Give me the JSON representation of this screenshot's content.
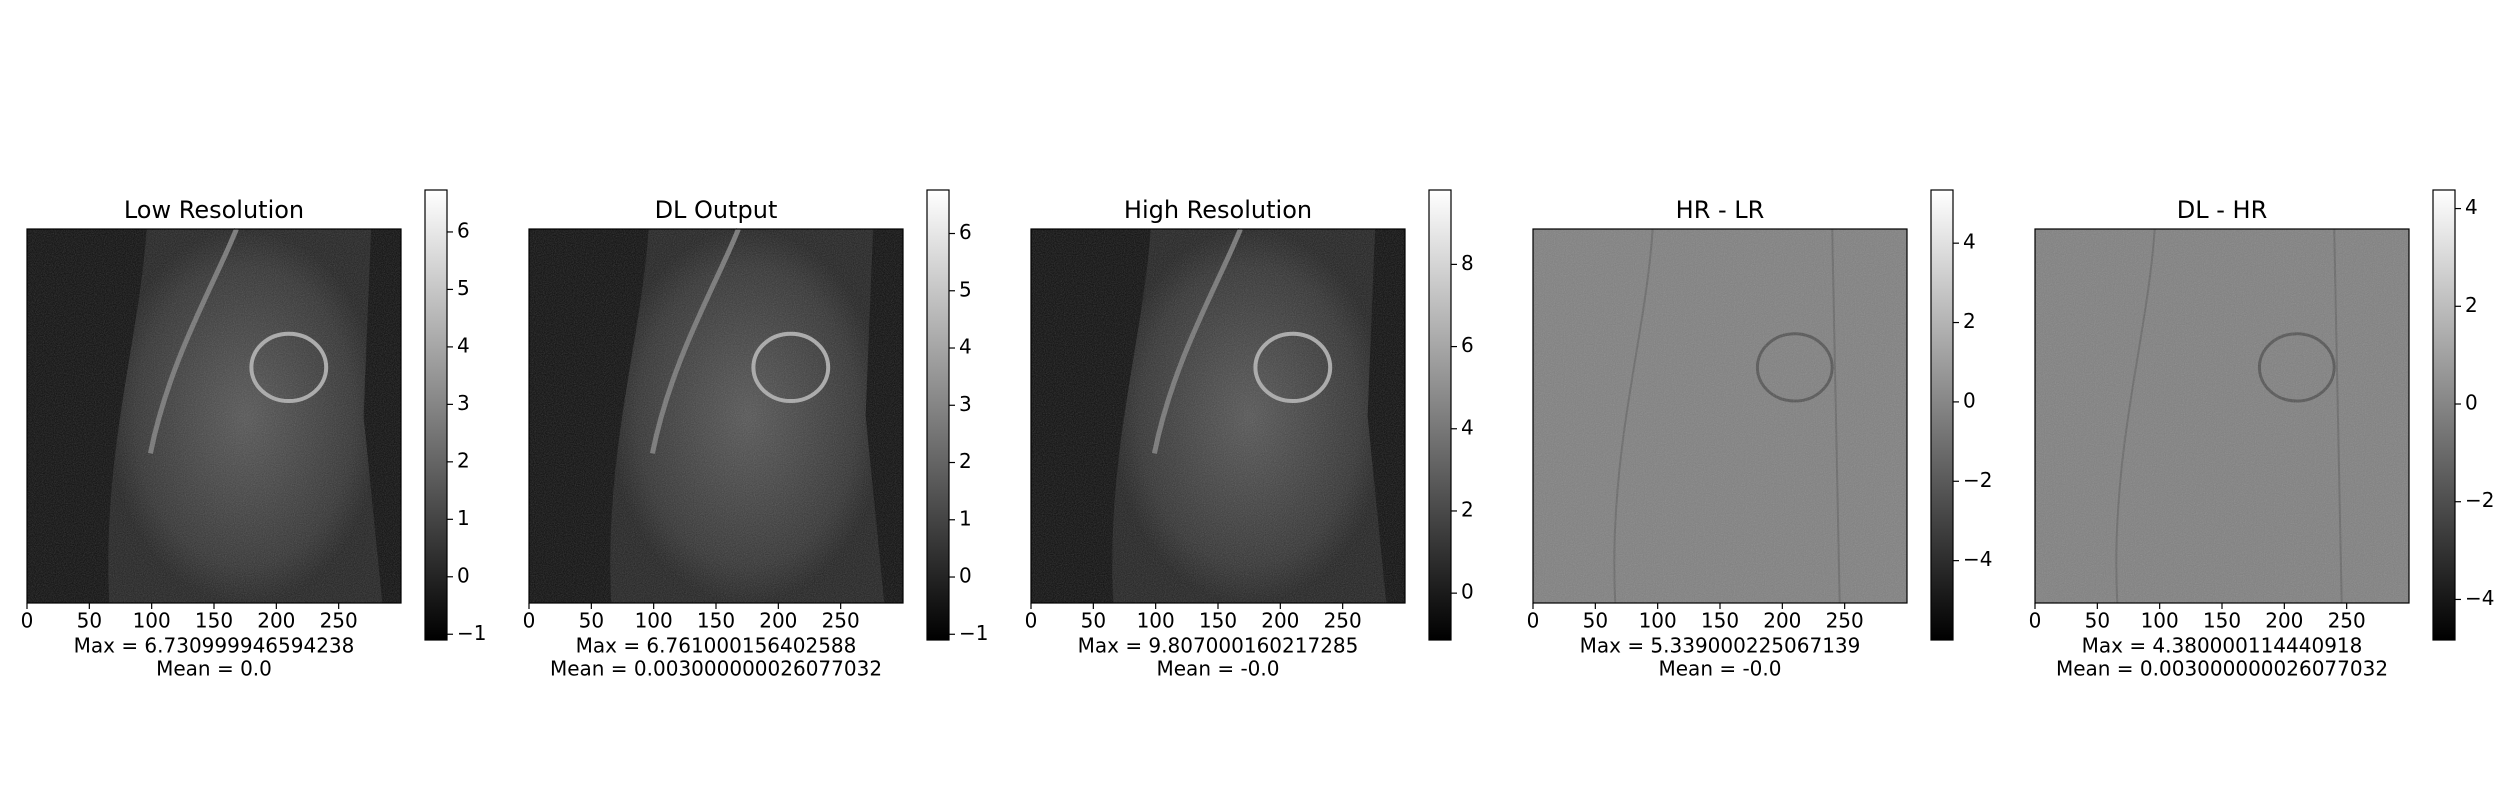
{
  "chart_data": [
    {
      "type": "image",
      "title": "Low Resolution",
      "xlabel": [
        "Max = 6.730999946594238",
        "Mean = 0.0"
      ],
      "background": "dark",
      "xlim": [
        0,
        300
      ],
      "xticks": [
        0,
        50,
        100,
        150,
        200,
        250
      ],
      "clim": [
        -1.1,
        6.73
      ],
      "cticks": [
        {
          "value": -1,
          "label": "−1"
        },
        0,
        1,
        2,
        3,
        4,
        5,
        6
      ]
    },
    {
      "type": "image",
      "title": "DL Output",
      "xlabel": [
        "Max = 6.761000156402588",
        "Mean = 0.003000000026077032"
      ],
      "background": "dark",
      "xlim": [
        0,
        300
      ],
      "xticks": [
        0,
        50,
        100,
        150,
        200,
        250
      ],
      "clim": [
        -1.1,
        6.76
      ],
      "cticks": [
        {
          "value": -1,
          "label": "−1"
        },
        0,
        1,
        2,
        3,
        4,
        5,
        6
      ]
    },
    {
      "type": "image",
      "title": "High Resolution",
      "xlabel": [
        "Max = 9.807000160217285",
        "Mean = -0.0"
      ],
      "background": "dark",
      "xlim": [
        0,
        300
      ],
      "xticks": [
        0,
        50,
        100,
        150,
        200,
        250
      ],
      "clim": [
        -1.14,
        9.81
      ],
      "cticks": [
        0,
        2,
        4,
        6,
        8
      ]
    },
    {
      "type": "image",
      "title": "HR - LR",
      "xlabel": [
        "Max = 5.339000225067139",
        "Mean = -0.0"
      ],
      "background": "gray",
      "xlim": [
        0,
        300
      ],
      "xticks": [
        0,
        50,
        100,
        150,
        200,
        250
      ],
      "clim": [
        -6.0,
        5.34
      ],
      "cticks": [
        {
          "value": -4,
          "label": "−4"
        },
        {
          "value": -2,
          "label": "−2"
        },
        0,
        2,
        4
      ]
    },
    {
      "type": "image",
      "title": "DL - HR",
      "xlabel": [
        "Max = 4.380000114440918",
        "Mean = 0.003000000026077032"
      ],
      "background": "gray",
      "xlim": [
        0,
        300
      ],
      "xticks": [
        0,
        50,
        100,
        150,
        200,
        250
      ],
      "clim": [
        -4.83,
        4.38
      ],
      "cticks": [
        {
          "value": -4,
          "label": "−4"
        },
        {
          "value": -2,
          "label": "−2"
        },
        0,
        2,
        4
      ]
    }
  ]
}
